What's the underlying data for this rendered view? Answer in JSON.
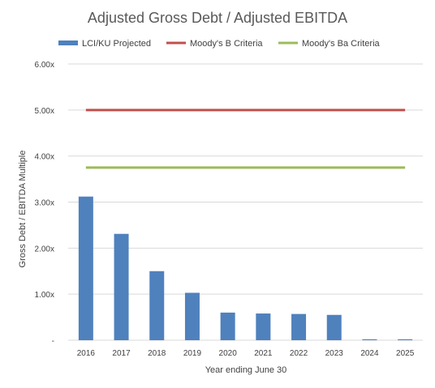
{
  "chart_data": {
    "type": "bar",
    "title": "Adjusted Gross Debt / Adjusted EBITDA",
    "xlabel": "Year ending June 30",
    "ylabel": "Gross Debt / EBITDA Multiple",
    "ylim": [
      0,
      6
    ],
    "yticks": [
      0,
      1,
      2,
      3,
      4,
      5,
      6
    ],
    "ytick_labels": [
      "-",
      "1.00x",
      "2.00x",
      "3.00x",
      "4.00x",
      "5.00x",
      "6.00x"
    ],
    "grid": true,
    "legend_position": "top",
    "categories": [
      "2016",
      "2017",
      "2018",
      "2019",
      "2020",
      "2021",
      "2022",
      "2023",
      "2024",
      "2025"
    ],
    "series": [
      {
        "name": "LCI/KU Projected",
        "type": "bar",
        "color": "#4f81bd",
        "values": [
          3.12,
          2.31,
          1.5,
          1.03,
          0.6,
          0.58,
          0.57,
          0.55,
          0.02,
          0.02
        ]
      },
      {
        "name": "Moody's B Criteria",
        "type": "line",
        "color": "#c0504d",
        "values": [
          5.0,
          5.0,
          5.0,
          5.0,
          5.0,
          5.0,
          5.0,
          5.0,
          5.0,
          5.0
        ]
      },
      {
        "name": "Moody's Ba Criteria",
        "type": "line",
        "color": "#9bbb59",
        "values": [
          3.75,
          3.75,
          3.75,
          3.75,
          3.75,
          3.75,
          3.75,
          3.75,
          3.75,
          3.75
        ]
      }
    ]
  }
}
